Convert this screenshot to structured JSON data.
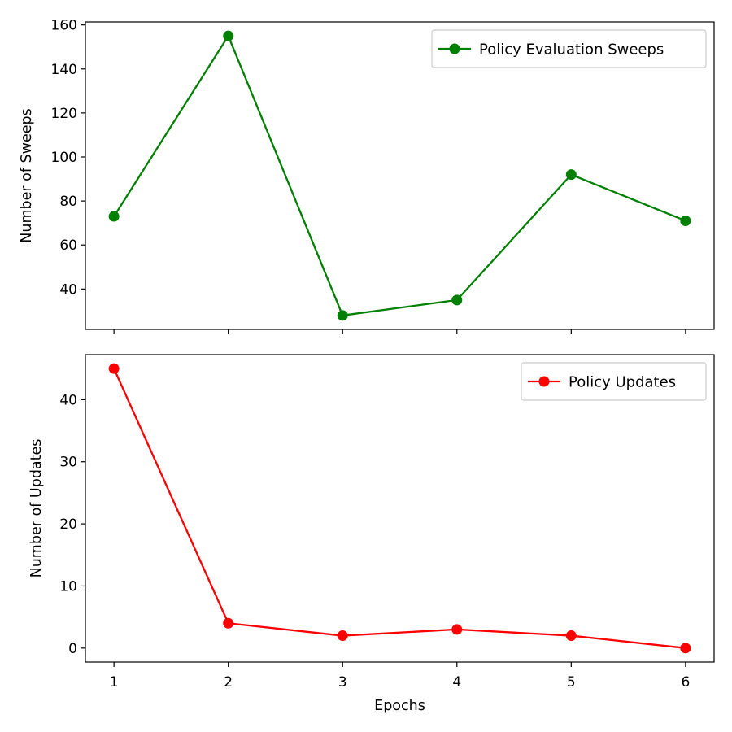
{
  "chart_data": [
    {
      "type": "line",
      "x": [
        1,
        2,
        3,
        4,
        5,
        6
      ],
      "series": [
        {
          "name": "Policy Evaluation Sweeps",
          "values": [
            73,
            155,
            28,
            35,
            92,
            71
          ],
          "color": "#008000",
          "marker": "circle"
        }
      ],
      "ylabel": "Number of Sweeps",
      "xlabel": "",
      "xlim": [
        0.75,
        6.25
      ],
      "ylim": [
        21.65,
        161.35
      ],
      "yticks": [
        40,
        60,
        80,
        100,
        120,
        140,
        160
      ],
      "xticks": [
        1,
        2,
        3,
        4,
        5,
        6
      ],
      "show_xtick_labels": false,
      "grid": false,
      "legend": "upper right"
    },
    {
      "type": "line",
      "x": [
        1,
        2,
        3,
        4,
        5,
        6
      ],
      "series": [
        {
          "name": "Policy Updates",
          "values": [
            45,
            4,
            2,
            3,
            2,
            0
          ],
          "color": "#ff0000",
          "marker": "circle"
        }
      ],
      "ylabel": "Number of Updates",
      "xlabel": "Epochs",
      "xlim": [
        0.75,
        6.25
      ],
      "ylim": [
        -2.25,
        47.25
      ],
      "yticks": [
        0,
        10,
        20,
        30,
        40
      ],
      "xticks": [
        1,
        2,
        3,
        4,
        5,
        6
      ],
      "show_xtick_labels": true,
      "grid": false,
      "legend": "upper right"
    }
  ]
}
